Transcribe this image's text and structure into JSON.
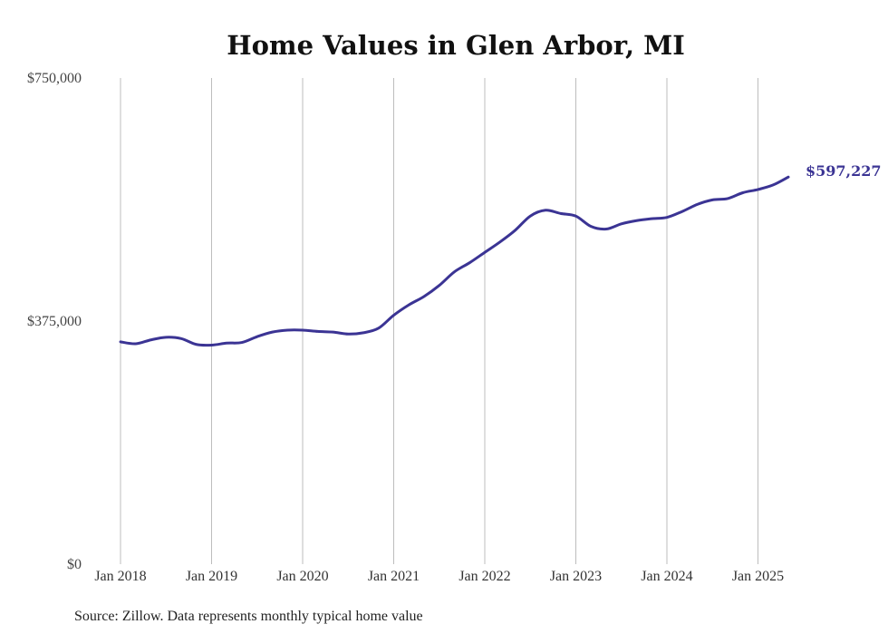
{
  "chart_data": {
    "type": "line",
    "title": "Home Values in Glen Arbor, MI",
    "xlabel": "",
    "ylabel": "",
    "ylim": [
      0,
      750000
    ],
    "xlim": [
      "2018-01",
      "2025-06"
    ],
    "y_ticks": [
      {
        "value": 0,
        "label": "$0"
      },
      {
        "value": 375000,
        "label": "$375,000"
      },
      {
        "value": 750000,
        "label": "$750,000"
      }
    ],
    "x_ticks": [
      {
        "date": "2018-01",
        "label": "Jan 2018"
      },
      {
        "date": "2019-01",
        "label": "Jan 2019"
      },
      {
        "date": "2020-01",
        "label": "Jan 2020"
      },
      {
        "date": "2021-01",
        "label": "Jan 2021"
      },
      {
        "date": "2022-01",
        "label": "Jan 2022"
      },
      {
        "date": "2023-01",
        "label": "Jan 2023"
      },
      {
        "date": "2024-01",
        "label": "Jan 2024"
      },
      {
        "date": "2025-01",
        "label": "Jan 2025"
      }
    ],
    "grid": {
      "vertical": true,
      "horizontal": false
    },
    "legend": "none",
    "series": [
      {
        "color": "#3b3494",
        "end_label": "$597,227",
        "points": [
          [
            "2018-01",
            343000
          ],
          [
            "2018-03",
            340000
          ],
          [
            "2018-05",
            346000
          ],
          [
            "2018-07",
            350000
          ],
          [
            "2018-09",
            348000
          ],
          [
            "2018-11",
            339000
          ],
          [
            "2019-01",
            338000
          ],
          [
            "2019-03",
            341000
          ],
          [
            "2019-05",
            342000
          ],
          [
            "2019-07",
            351000
          ],
          [
            "2019-09",
            358000
          ],
          [
            "2019-11",
            361000
          ],
          [
            "2020-01",
            361000
          ],
          [
            "2020-03",
            359000
          ],
          [
            "2020-05",
            358000
          ],
          [
            "2020-07",
            355000
          ],
          [
            "2020-09",
            357000
          ],
          [
            "2020-11",
            364000
          ],
          [
            "2021-01",
            384000
          ],
          [
            "2021-03",
            400000
          ],
          [
            "2021-05",
            413000
          ],
          [
            "2021-07",
            430000
          ],
          [
            "2021-09",
            451000
          ],
          [
            "2021-11",
            465000
          ],
          [
            "2022-01",
            481000
          ],
          [
            "2022-03",
            497000
          ],
          [
            "2022-05",
            515000
          ],
          [
            "2022-07",
            537000
          ],
          [
            "2022-09",
            546000
          ],
          [
            "2022-11",
            541000
          ],
          [
            "2023-01",
            537000
          ],
          [
            "2023-03",
            521000
          ],
          [
            "2023-05",
            517000
          ],
          [
            "2023-07",
            525000
          ],
          [
            "2023-09",
            530000
          ],
          [
            "2023-11",
            533000
          ],
          [
            "2024-01",
            535000
          ],
          [
            "2024-03",
            544000
          ],
          [
            "2024-05",
            555000
          ],
          [
            "2024-07",
            562000
          ],
          [
            "2024-09",
            564000
          ],
          [
            "2024-11",
            573000
          ],
          [
            "2025-01",
            578000
          ],
          [
            "2025-03",
            585000
          ],
          [
            "2025-05",
            597227
          ]
        ]
      }
    ]
  },
  "source_note": "Source: Zillow. Data represents monthly typical home value"
}
